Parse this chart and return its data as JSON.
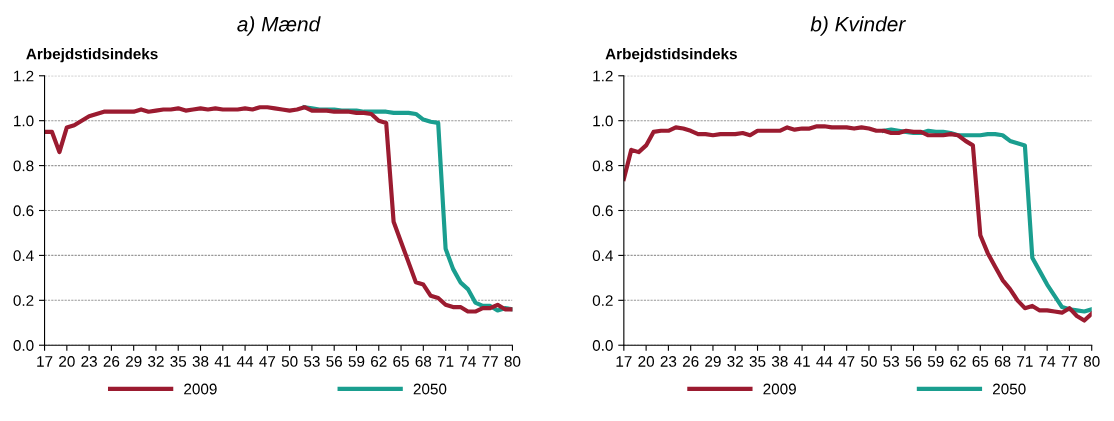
{
  "chart_data": [
    {
      "type": "line",
      "title": "a) Mænd",
      "ylabel": "Arbejdstidsindeks",
      "x": [
        17,
        18,
        19,
        20,
        21,
        22,
        23,
        24,
        25,
        26,
        27,
        28,
        29,
        30,
        31,
        32,
        33,
        34,
        35,
        36,
        37,
        38,
        39,
        40,
        41,
        42,
        43,
        44,
        45,
        46,
        47,
        48,
        49,
        50,
        51,
        52,
        53,
        54,
        55,
        56,
        57,
        58,
        59,
        60,
        61,
        62,
        63,
        64,
        65,
        66,
        67,
        68,
        69,
        70,
        71,
        72,
        73,
        74,
        75,
        76,
        77,
        78,
        79,
        80
      ],
      "series": [
        {
          "name": "2050",
          "color": "#1a9e8f",
          "values": [
            null,
            null,
            null,
            null,
            null,
            null,
            null,
            null,
            null,
            null,
            null,
            null,
            null,
            null,
            null,
            null,
            null,
            null,
            null,
            null,
            null,
            null,
            null,
            null,
            null,
            null,
            null,
            null,
            null,
            null,
            null,
            null,
            null,
            null,
            null,
            1.06,
            1.055,
            1.05,
            1.05,
            1.05,
            1.045,
            1.045,
            1.045,
            1.04,
            1.04,
            1.04,
            1.04,
            1.035,
            1.035,
            1.035,
            1.03,
            1.005,
            0.995,
            0.99,
            0.43,
            0.34,
            0.28,
            0.25,
            0.19,
            0.175,
            0.175,
            0.155,
            0.165,
            0.16
          ]
        },
        {
          "name": "2009",
          "color": "#9b1b30",
          "values": [
            0.95,
            0.95,
            0.86,
            0.97,
            0.98,
            1.0,
            1.02,
            1.03,
            1.04,
            1.04,
            1.04,
            1.04,
            1.04,
            1.05,
            1.04,
            1.045,
            1.05,
            1.05,
            1.055,
            1.045,
            1.05,
            1.055,
            1.05,
            1.055,
            1.05,
            1.05,
            1.05,
            1.055,
            1.05,
            1.06,
            1.06,
            1.055,
            1.05,
            1.045,
            1.05,
            1.06,
            1.045,
            1.045,
            1.045,
            1.04,
            1.04,
            1.04,
            1.035,
            1.035,
            1.03,
            1.0,
            0.99,
            0.55,
            0.46,
            0.37,
            0.28,
            0.27,
            0.22,
            0.21,
            0.18,
            0.17,
            0.17,
            0.15,
            0.15,
            0.165,
            0.165,
            0.18,
            0.16,
            0.16
          ]
        }
      ],
      "xlim": [
        17,
        80
      ],
      "xticks": [
        17,
        20,
        23,
        26,
        29,
        32,
        35,
        38,
        41,
        44,
        47,
        50,
        53,
        56,
        59,
        62,
        65,
        68,
        71,
        74,
        77,
        80
      ],
      "ylim": [
        0,
        1.2
      ],
      "yticks": [
        {
          "value": 0,
          "label": "0.0"
        },
        {
          "value": 0.2,
          "label": "0.2"
        },
        {
          "value": 0.4,
          "label": "0.4"
        },
        {
          "value": 0.6,
          "label": "0.6"
        },
        {
          "value": 0.8,
          "label": "0.8"
        },
        {
          "value": 1.0,
          "label": "1.0"
        },
        {
          "value": 1.2,
          "label": "1.2"
        }
      ],
      "grid": "y",
      "legend": "bottom",
      "marker": "none",
      "line_style": "solid"
    },
    {
      "type": "line",
      "title": "b) Kvinder",
      "ylabel": "Arbejdstidsindeks",
      "x": [
        17,
        18,
        19,
        20,
        21,
        22,
        23,
        24,
        25,
        26,
        27,
        28,
        29,
        30,
        31,
        32,
        33,
        34,
        35,
        36,
        37,
        38,
        39,
        40,
        41,
        42,
        43,
        44,
        45,
        46,
        47,
        48,
        49,
        50,
        51,
        52,
        53,
        54,
        55,
        56,
        57,
        58,
        59,
        60,
        61,
        62,
        63,
        64,
        65,
        66,
        67,
        68,
        69,
        70,
        71,
        72,
        73,
        74,
        75,
        76,
        77,
        78,
        79,
        80
      ],
      "series": [
        {
          "name": "2050",
          "color": "#1a9e8f",
          "values": [
            null,
            null,
            null,
            null,
            null,
            null,
            null,
            null,
            null,
            null,
            null,
            null,
            null,
            null,
            null,
            null,
            null,
            null,
            null,
            null,
            null,
            null,
            null,
            null,
            null,
            null,
            null,
            null,
            null,
            null,
            null,
            null,
            null,
            null,
            null,
            0.955,
            0.96,
            0.955,
            0.95,
            0.945,
            0.945,
            0.955,
            0.95,
            0.95,
            0.945,
            0.935,
            0.935,
            0.935,
            0.935,
            0.94,
            0.94,
            0.935,
            0.91,
            0.9,
            0.89,
            0.39,
            0.33,
            0.27,
            0.22,
            0.17,
            0.16,
            0.155,
            0.15,
            0.16
          ]
        },
        {
          "name": "2009",
          "color": "#9b1b30",
          "values": [
            0.74,
            0.87,
            0.86,
            0.89,
            0.95,
            0.955,
            0.955,
            0.97,
            0.965,
            0.955,
            0.94,
            0.94,
            0.935,
            0.94,
            0.94,
            0.94,
            0.945,
            0.935,
            0.955,
            0.955,
            0.955,
            0.955,
            0.97,
            0.96,
            0.965,
            0.965,
            0.975,
            0.975,
            0.97,
            0.97,
            0.97,
            0.965,
            0.97,
            0.965,
            0.955,
            0.955,
            0.945,
            0.945,
            0.955,
            0.95,
            0.95,
            0.935,
            0.935,
            0.935,
            0.94,
            0.935,
            0.91,
            0.89,
            0.49,
            0.41,
            0.35,
            0.29,
            0.25,
            0.2,
            0.165,
            0.175,
            0.155,
            0.155,
            0.15,
            0.145,
            0.165,
            0.13,
            0.11,
            0.14
          ]
        }
      ],
      "xlim": [
        17,
        80
      ],
      "xticks": [
        17,
        20,
        23,
        26,
        29,
        32,
        35,
        38,
        41,
        44,
        47,
        50,
        53,
        56,
        59,
        62,
        65,
        68,
        71,
        74,
        77,
        80
      ],
      "ylim": [
        0,
        1.2
      ],
      "yticks": [
        {
          "value": 0,
          "label": "0.0"
        },
        {
          "value": 0.2,
          "label": "0.2"
        },
        {
          "value": 0.4,
          "label": "0.4"
        },
        {
          "value": 0.6,
          "label": "0.6"
        },
        {
          "value": 0.8,
          "label": "0.8"
        },
        {
          "value": 1.0,
          "label": "1.0"
        },
        {
          "value": 1.2,
          "label": "1.2"
        }
      ],
      "grid": "y",
      "legend": "bottom",
      "marker": "none",
      "line_style": "solid"
    }
  ]
}
